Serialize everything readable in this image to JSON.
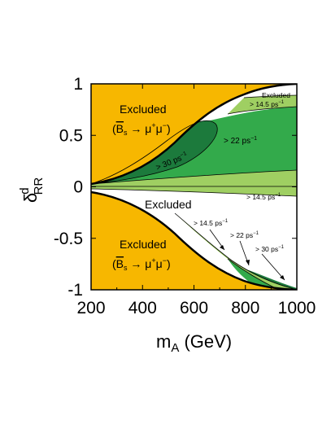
{
  "chart_data": {
    "type": "area",
    "title": "",
    "xlabel": {
      "main": "m",
      "sub": "A",
      "unit": " (GeV)"
    },
    "ylabel": {
      "main": "δ",
      "sup": "d",
      "sub": "RR"
    },
    "xlim": [
      200,
      1000
    ],
    "ylim": [
      -1,
      1
    ],
    "xticks": [
      "200",
      "400",
      "600",
      "800",
      "1000"
    ],
    "yticks": [
      "1",
      "0.5",
      "0",
      "-0.5",
      "-1"
    ],
    "grid": false,
    "colors": {
      "excluded_bs": "#f7b700",
      "gt_14_5": "#9fcf62",
      "gt_22": "#33aa4b",
      "gt_30": "#1c7a3c",
      "allowed": "#ffffff"
    },
    "regions": [
      {
        "name": "Excluded (B̄s → μ⁺μ⁻) upper",
        "boundary_x": [
          200,
          300,
          400,
          500,
          600,
          700,
          800,
          900,
          1000
        ],
        "boundary_y": [
          0.05,
          0.17,
          0.32,
          0.5,
          0.66,
          0.8,
          0.9,
          0.96,
          1.0
        ]
      },
      {
        "name": "Excluded (B̄s → μ⁺μ⁻) lower",
        "boundary_x": [
          200,
          300,
          400,
          500,
          600,
          700,
          800,
          900,
          1000
        ],
        "boundary_y": [
          -0.06,
          -0.18,
          -0.34,
          -0.52,
          -0.68,
          -0.82,
          -0.92,
          -0.97,
          -1.0
        ]
      }
    ],
    "annotations": {
      "excluded": "Excluded",
      "bs_decay": "(B̄s → μ⁺μ⁻)",
      "bs_label": {
        "bar": "B",
        "sub": "s",
        "arrow": " → ",
        "mu": "μ",
        "plus": "+",
        "minus": "−"
      },
      "gt_14_5": "> 14.5 ps",
      "gt_22": "> 22 ps",
      "gt_30": "> 30 ps",
      "inv_exp": "−1"
    }
  }
}
